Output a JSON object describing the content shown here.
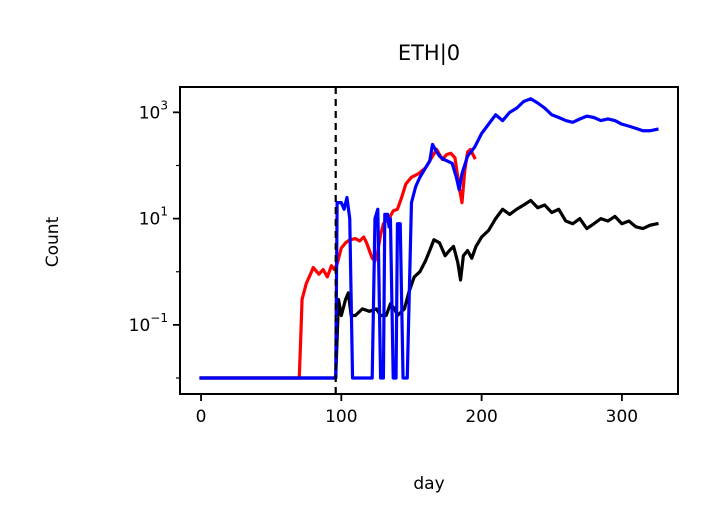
{
  "chart_data": {
    "type": "line",
    "title": "ETH|0",
    "xlabel": "day",
    "ylabel": "Count",
    "xlim": [
      -15,
      340
    ],
    "ylim": [
      0.005,
      3000
    ],
    "yscale": "log",
    "xticks": [
      0,
      100,
      200,
      300
    ],
    "xtick_labels": [
      "0",
      "100",
      "200",
      "300"
    ],
    "yticks": [
      0.1,
      10,
      1000
    ],
    "ytick_labels": [
      {
        "base": "10",
        "exp": "−1"
      },
      {
        "base": "10",
        "exp": "1"
      },
      {
        "base": "10",
        "exp": "3"
      }
    ],
    "vline": {
      "x": 96,
      "style": "dashed",
      "color": "#000000"
    },
    "grid": false,
    "series": [
      {
        "color": "#ff0000",
        "points": [
          [
            0,
            0.01
          ],
          [
            70,
            0.01
          ],
          [
            71,
            0.05
          ],
          [
            72,
            0.3
          ],
          [
            75,
            0.6
          ],
          [
            78,
            0.9
          ],
          [
            80,
            1.2
          ],
          [
            84,
            0.9
          ],
          [
            87,
            1.1
          ],
          [
            90,
            0.8
          ],
          [
            93,
            1.3
          ],
          [
            95,
            1.1
          ],
          [
            97,
            1.4
          ],
          [
            100,
            2.8
          ],
          [
            103,
            3.5
          ],
          [
            106,
            4.0
          ],
          [
            110,
            4.2
          ],
          [
            113,
            3.8
          ],
          [
            116,
            4.5
          ],
          [
            118,
            3.5
          ],
          [
            120,
            2.5
          ],
          [
            122,
            1.8
          ],
          [
            124,
            1.6
          ],
          [
            126,
            2.4
          ],
          [
            128,
            5.0
          ],
          [
            130,
            8.0
          ],
          [
            134,
            10.0
          ],
          [
            137,
            14.0
          ],
          [
            140,
            15.0
          ],
          [
            143,
            25.0
          ],
          [
            146,
            45.0
          ],
          [
            150,
            60.0
          ],
          [
            155,
            70.0
          ],
          [
            160,
            90.0
          ],
          [
            165,
            150.0
          ],
          [
            168,
            200.0
          ],
          [
            172,
            130.0
          ],
          [
            175,
            160.0
          ],
          [
            178,
            170.0
          ],
          [
            181,
            140.0
          ],
          [
            184,
            40.0
          ],
          [
            186,
            20.0
          ],
          [
            188,
            80.0
          ],
          [
            190,
            180.0
          ],
          [
            192,
            200.0
          ],
          [
            195,
            140.0
          ]
        ]
      },
      {
        "color": "#000000",
        "points": [
          [
            0,
            0.01
          ],
          [
            96,
            0.01
          ],
          [
            98,
            0.3
          ],
          [
            100,
            0.15
          ],
          [
            103,
            0.3
          ],
          [
            105,
            0.4
          ],
          [
            107,
            0.15
          ],
          [
            110,
            0.15
          ],
          [
            115,
            0.2
          ],
          [
            120,
            0.18
          ],
          [
            125,
            0.2
          ],
          [
            128,
            0.15
          ],
          [
            132,
            0.15
          ],
          [
            135,
            0.25
          ],
          [
            138,
            0.2
          ],
          [
            140,
            0.15
          ],
          [
            145,
            0.2
          ],
          [
            148,
            0.4
          ],
          [
            152,
            0.8
          ],
          [
            156,
            1.0
          ],
          [
            160,
            1.6
          ],
          [
            163,
            2.5
          ],
          [
            166,
            4.0
          ],
          [
            170,
            3.5
          ],
          [
            174,
            2.0
          ],
          [
            177,
            2.5
          ],
          [
            180,
            3.0
          ],
          [
            183,
            1.5
          ],
          [
            185,
            0.7
          ],
          [
            187,
            2.0
          ],
          [
            190,
            2.5
          ],
          [
            193,
            1.8
          ],
          [
            196,
            3.0
          ],
          [
            200,
            4.5
          ],
          [
            205,
            6.0
          ],
          [
            210,
            10.0
          ],
          [
            215,
            15.0
          ],
          [
            220,
            12.0
          ],
          [
            225,
            15.0
          ],
          [
            230,
            18.0
          ],
          [
            235,
            22.0
          ],
          [
            240,
            16.0
          ],
          [
            245,
            18.0
          ],
          [
            250,
            13.0
          ],
          [
            255,
            15.0
          ],
          [
            260,
            9.0
          ],
          [
            265,
            8.0
          ],
          [
            270,
            10.0
          ],
          [
            275,
            6.5
          ],
          [
            280,
            8.0
          ],
          [
            285,
            10.0
          ],
          [
            290,
            9.0
          ],
          [
            295,
            11.0
          ],
          [
            300,
            8.0
          ],
          [
            305,
            9.0
          ],
          [
            310,
            7.0
          ],
          [
            315,
            6.5
          ],
          [
            320,
            7.5
          ],
          [
            325,
            8.0
          ]
        ]
      },
      {
        "color": "#0000ff",
        "points": [
          [
            0,
            0.01
          ],
          [
            96,
            0.01
          ],
          [
            97,
            20.0
          ],
          [
            100,
            20.0
          ],
          [
            102,
            15.0
          ],
          [
            104,
            25.0
          ],
          [
            106,
            10.0
          ],
          [
            108,
            0.01
          ],
          [
            122,
            0.01
          ],
          [
            124,
            10.0
          ],
          [
            126,
            15.0
          ],
          [
            128,
            0.01
          ],
          [
            130,
            0.01
          ],
          [
            131,
            12.0
          ],
          [
            133,
            12.0
          ],
          [
            134,
            7.0
          ],
          [
            135,
            10.0
          ],
          [
            137,
            0.01
          ],
          [
            139,
            0.01
          ],
          [
            140,
            8.0
          ],
          [
            142,
            8.0
          ],
          [
            144,
            0.01
          ],
          [
            147,
            0.01
          ],
          [
            150,
            20.0
          ],
          [
            153,
            40.0
          ],
          [
            156,
            60.0
          ],
          [
            160,
            90.0
          ],
          [
            163,
            120.0
          ],
          [
            165,
            250.0
          ],
          [
            168,
            180.0
          ],
          [
            170,
            150.0
          ],
          [
            173,
            130.0
          ],
          [
            176,
            120.0
          ],
          [
            179,
            110.0
          ],
          [
            182,
            60.0
          ],
          [
            184,
            35.0
          ],
          [
            186,
            70.0
          ],
          [
            190,
            150.0
          ],
          [
            195,
            220.0
          ],
          [
            200,
            400.0
          ],
          [
            205,
            600.0
          ],
          [
            210,
            900.0
          ],
          [
            215,
            700.0
          ],
          [
            220,
            1000.0
          ],
          [
            225,
            1200.0
          ],
          [
            230,
            1600.0
          ],
          [
            235,
            1800.0
          ],
          [
            240,
            1500.0
          ],
          [
            245,
            1200.0
          ],
          [
            250,
            900.0
          ],
          [
            255,
            800.0
          ],
          [
            260,
            700.0
          ],
          [
            265,
            650.0
          ],
          [
            270,
            750.0
          ],
          [
            275,
            850.0
          ],
          [
            280,
            800.0
          ],
          [
            285,
            700.0
          ],
          [
            290,
            750.0
          ],
          [
            295,
            700.0
          ],
          [
            300,
            600.0
          ],
          [
            305,
            550.0
          ],
          [
            310,
            500.0
          ],
          [
            315,
            450.0
          ],
          [
            320,
            450.0
          ],
          [
            325,
            480.0
          ]
        ]
      }
    ]
  }
}
